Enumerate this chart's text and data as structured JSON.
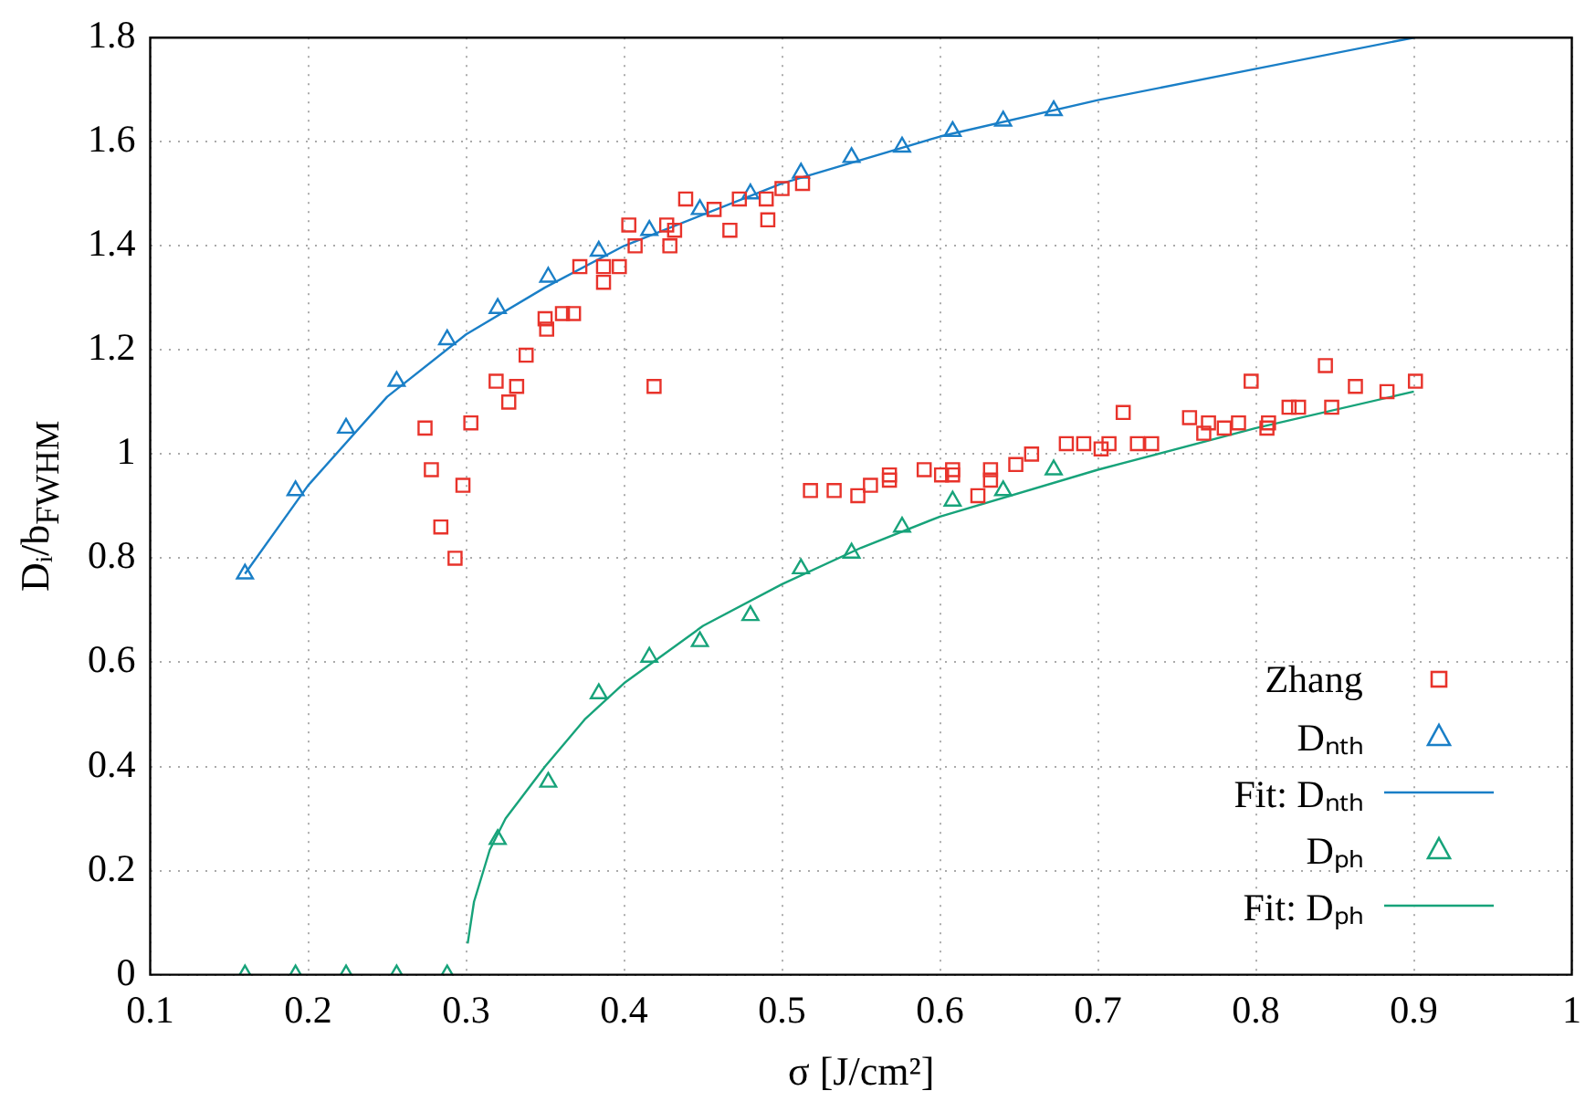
{
  "chart_data": {
    "type": "scatter",
    "xlabel": "σ [J/cm²]",
    "ylabel": "Dᵢ/b$_{FWHM}$",
    "xlim": [
      0.1,
      1
    ],
    "xticks": [
      0.1,
      0.2,
      0.3,
      0.4,
      0.5,
      0.6,
      0.7,
      0.8,
      0.9,
      1
    ],
    "ylim": [
      0,
      1.8
    ],
    "yticks": [
      0,
      0.2,
      0.4,
      0.6,
      0.8,
      1,
      1.2,
      1.4,
      1.6,
      1.8
    ],
    "grid": true,
    "legend": "bottom right",
    "series": [
      {
        "name": "Zhang",
        "marker": "square",
        "color": "#e8332b",
        "x": [
          0.274,
          0.303,
          0.278,
          0.298,
          0.284,
          0.293,
          0.319,
          0.332,
          0.327,
          0.338,
          0.35,
          0.351,
          0.361,
          0.368,
          0.419,
          0.372,
          0.387,
          0.397,
          0.387,
          0.403,
          0.407,
          0.427,
          0.432,
          0.429,
          0.439,
          0.457,
          0.467,
          0.473,
          0.49,
          0.491,
          0.5,
          0.513,
          0.518,
          0.533,
          0.548,
          0.556,
          0.568,
          0.568,
          0.59,
          0.601,
          0.608,
          0.608,
          0.624,
          0.632,
          0.632,
          0.648,
          0.658,
          0.68,
          0.691,
          0.702,
          0.707,
          0.716,
          0.725,
          0.734,
          0.758,
          0.767,
          0.77,
          0.78,
          0.789,
          0.797,
          0.807,
          0.808,
          0.821,
          0.827,
          0.848,
          0.844,
          0.863,
          0.883,
          0.901
        ],
        "values": [
          1.05,
          1.06,
          0.97,
          0.94,
          0.86,
          0.8,
          1.14,
          1.13,
          1.1,
          1.19,
          1.26,
          1.24,
          1.27,
          1.27,
          1.13,
          1.36,
          1.36,
          1.36,
          1.33,
          1.44,
          1.4,
          1.44,
          1.43,
          1.4,
          1.49,
          1.47,
          1.43,
          1.49,
          1.49,
          1.45,
          1.51,
          1.52,
          0.93,
          0.93,
          0.92,
          0.94,
          0.95,
          0.96,
          0.97,
          0.96,
          0.96,
          0.97,
          0.92,
          0.95,
          0.97,
          0.98,
          1,
          1.02,
          1.02,
          1.01,
          1.02,
          1.08,
          1.02,
          1.02,
          1.07,
          1.04,
          1.06,
          1.05,
          1.06,
          1.14,
          1.05,
          1.06,
          1.09,
          1.09,
          1.09,
          1.17,
          1.13,
          1.12,
          1.14
        ]
      },
      {
        "name": "Dₙₜₕ",
        "marker": "triangle",
        "color": "#1a7fc7",
        "x": [
          0.16,
          0.192,
          0.224,
          0.256,
          0.288,
          0.32,
          0.352,
          0.384,
          0.416,
          0.448,
          0.48,
          0.512,
          0.544,
          0.576,
          0.608,
          0.64,
          0.672
        ],
        "values": [
          0.77,
          0.93,
          1.05,
          1.14,
          1.22,
          1.28,
          1.34,
          1.39,
          1.43,
          1.47,
          1.5,
          1.54,
          1.57,
          1.59,
          1.62,
          1.64,
          1.66
        ]
      },
      {
        "name": "Fit: Dₙₜₕ",
        "type": "line",
        "marker": "none",
        "color": "#1a7fc7",
        "x": [
          0.16,
          0.2,
          0.25,
          0.3,
          0.35,
          0.4,
          0.5,
          0.6,
          0.7,
          0.8,
          0.9
        ],
        "values": [
          0.77,
          0.94,
          1.11,
          1.23,
          1.32,
          1.4,
          1.52,
          1.61,
          1.68,
          1.74,
          1.8
        ]
      },
      {
        "name": "Dₚₕ",
        "marker": "triangle",
        "color": "#17a37a",
        "x": [
          0.16,
          0.192,
          0.224,
          0.256,
          0.288,
          0.32,
          0.352,
          0.384,
          0.416,
          0.448,
          0.48,
          0.512,
          0.544,
          0.576,
          0.608,
          0.64,
          0.672
        ],
        "values": [
          0,
          0,
          0,
          0,
          0,
          0.26,
          0.37,
          0.54,
          0.61,
          0.64,
          0.69,
          0.78,
          0.81,
          0.86,
          0.91,
          0.93,
          0.97
        ]
      },
      {
        "name": "Fit: Dₚₕ",
        "type": "line",
        "marker": "none",
        "color": "#17a37a",
        "x": [
          0.301,
          0.305,
          0.31,
          0.315,
          0.325,
          0.35,
          0.375,
          0.4,
          0.45,
          0.5,
          0.55,
          0.6,
          0.7,
          0.8,
          0.9
        ],
        "values": [
          0.06,
          0.14,
          0.19,
          0.24,
          0.3,
          0.4,
          0.49,
          0.56,
          0.67,
          0.75,
          0.82,
          0.88,
          0.97,
          1.05,
          1.12
        ]
      }
    ]
  }
}
